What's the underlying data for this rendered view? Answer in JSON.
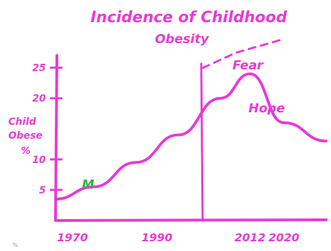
{
  "chart_data": {
    "type": "line",
    "title": "Incidence of Childhood Obesity",
    "ylabel": "Child Obese %",
    "xlabel": "",
    "y_ticks": [
      "5",
      "10",
      "20",
      "25"
    ],
    "x_ticks": [
      "1970",
      "1990",
      "2012",
      "2020"
    ],
    "x": [
      1966,
      1975,
      1985,
      1995,
      2005,
      2012,
      2020,
      2030
    ],
    "series": [
      {
        "name": "",
        "values": [
          3.5,
          5.5,
          9.5,
          14,
          20,
          24,
          16,
          13
        ]
      }
    ],
    "ylim": [
      0,
      27
    ],
    "annotations": {
      "fear": "Fear",
      "hope": "Hope",
      "marker": "M"
    },
    "colors": {
      "ink": "#e83ad6",
      "marker": "#2fb24a"
    }
  },
  "footer_mark": "%"
}
